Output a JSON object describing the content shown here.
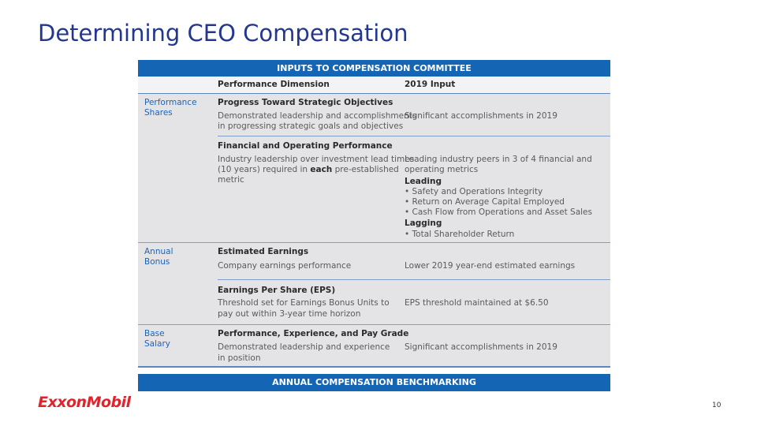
{
  "header": {
    "title": "Determining CEO Compensation"
  },
  "table": {
    "caption": "INPUTS TO COMPENSATION COMMITTEE",
    "columns": [
      "Performance Dimension",
      "2019 Input"
    ],
    "sections": [
      {
        "label": [
          "Performance",
          "Shares"
        ],
        "items": [
          {
            "title": "Progress Toward Strategic Objectives",
            "description": [
              "Demonstrated leadership and accomplishments",
              "in progressing strategic goals and objectives"
            ],
            "input": [
              "Significant accomplishments in 2019"
            ]
          },
          {
            "title": "Financial and Operating Performance",
            "description": [
              "Industry leadership over investment lead times",
              {
                "before": "(10 years) required in ",
                "bold": "each",
                "after": " pre-established"
              },
              "metric"
            ],
            "input": [
              "Leading industry peers in 3 of 4 financial and",
              "operating metrics"
            ],
            "groups": [
              {
                "heading": "Leading",
                "bullets": [
                  "• Safety and Operations Integrity",
                  "• Return on Average Capital Employed",
                  "• Cash Flow from Operations and Asset Sales"
                ]
              },
              {
                "heading": "Lagging",
                "bullets": [
                  "• Total Shareholder Return"
                ]
              }
            ]
          }
        ]
      },
      {
        "label": [
          "Annual",
          "Bonus"
        ],
        "items": [
          {
            "title": "Estimated Earnings",
            "description": [
              "Company earnings performance"
            ],
            "input": [
              "Lower 2019 year-end estimated earnings"
            ]
          },
          {
            "title": "Earnings Per Share (EPS)",
            "description": [
              "Threshold set for Earnings Bonus Units to",
              "pay out within 3-year time horizon"
            ],
            "input": [
              "EPS threshold maintained at $6.50"
            ]
          }
        ]
      },
      {
        "label": [
          "Base",
          "Salary"
        ],
        "items": [
          {
            "title": "Performance, Experience, and Pay Grade",
            "description": [
              "Demonstrated leadership and experience",
              "in position"
            ],
            "input": [
              "Significant accomplishments in 2019"
            ]
          }
        ]
      }
    ],
    "footer": "ANNUAL COMPENSATION BENCHMARKING"
  },
  "logo": "ExxonMobil",
  "page_number": "10"
}
